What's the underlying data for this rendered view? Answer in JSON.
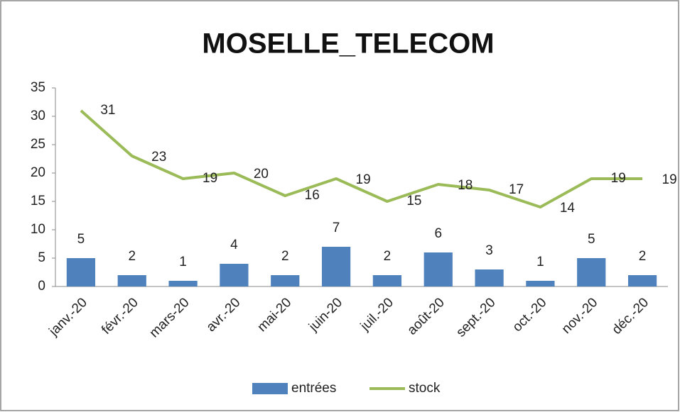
{
  "chart_data": {
    "type": "combo",
    "title": "MOSELLE_TELECOM",
    "categories": [
      "janv.-20",
      "févr.-20",
      "mars-20",
      "avr.-20",
      "mai-20",
      "juin-20",
      "juil.-20",
      "août-20",
      "sept.-20",
      "oct.-20",
      "nov.-20",
      "déc.-20"
    ],
    "series": [
      {
        "name": "entrées",
        "type": "bar",
        "color": "#4f81bd",
        "values": [
          5,
          2,
          1,
          4,
          2,
          7,
          2,
          6,
          3,
          1,
          5,
          2
        ]
      },
      {
        "name": "stock",
        "type": "line",
        "color": "#9bbb59",
        "values": [
          31,
          23,
          19,
          20,
          16,
          19,
          15,
          18,
          17,
          14,
          19,
          19
        ]
      }
    ],
    "ylim": [
      0,
      35
    ],
    "yticks": [
      0,
      5,
      10,
      15,
      20,
      25,
      30,
      35
    ],
    "grid": false,
    "legend": "bottom"
  }
}
